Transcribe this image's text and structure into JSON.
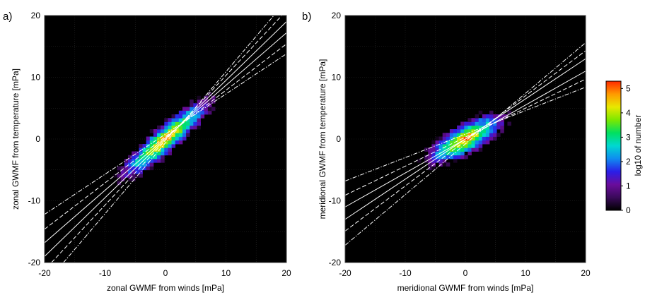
{
  "chart_data": [
    {
      "type": "heatmap",
      "panel_label": "a)",
      "xlabel": "zonal GWMF from winds [mPa]",
      "ylabel": "zonal GWMF from temperature [mPa]",
      "xlim": [
        -20,
        20
      ],
      "ylim": [
        -20,
        20
      ],
      "xticks": [
        "-20",
        "-10",
        "0",
        "10",
        "20"
      ],
      "yticks": [
        "-20",
        "-10",
        "0",
        "10",
        "20"
      ],
      "grid": true,
      "background": "#000000",
      "center": [
        0,
        0
      ],
      "spread_along": 3.2,
      "spread_across": 0.7,
      "fit_lines": [
        {
          "style": "solid",
          "slope": 0.85,
          "intercept": 0.2
        },
        {
          "style": "solid",
          "slope": 0.95,
          "intercept": 0.0
        },
        {
          "style": "dashed",
          "slope": 0.75,
          "intercept": 0.4
        },
        {
          "style": "dashed",
          "slope": 1.05,
          "intercept": -0.2
        },
        {
          "style": "dashdot",
          "slope": 0.65,
          "intercept": 0.8
        },
        {
          "style": "dashdot",
          "slope": 1.15,
          "intercept": -0.6
        }
      ]
    },
    {
      "type": "heatmap",
      "panel_label": "b)",
      "xlabel": "meridional GWMF from winds [mPa]",
      "ylabel": "meridional GWMF from temperature [mPa]",
      "xlim": [
        -20,
        20
      ],
      "ylim": [
        -20,
        20
      ],
      "xticks": [
        "-20",
        "-10",
        "0",
        "10",
        "20"
      ],
      "yticks": [
        "-20",
        "-10",
        "0",
        "10",
        "20"
      ],
      "grid": true,
      "background": "#000000",
      "center": [
        0,
        0
      ],
      "spread_along": 2.4,
      "spread_across": 0.8,
      "fit_lines": [
        {
          "style": "solid",
          "slope": 0.55,
          "intercept": 0.0
        },
        {
          "style": "solid",
          "slope": 0.65,
          "intercept": 0.0
        },
        {
          "style": "dashed",
          "slope": 0.47,
          "intercept": 0.3
        },
        {
          "style": "dashed",
          "slope": 0.73,
          "intercept": -0.3
        },
        {
          "style": "dashdot",
          "slope": 0.38,
          "intercept": 0.8
        },
        {
          "style": "dashdot",
          "slope": 0.82,
          "intercept": -0.8
        }
      ]
    }
  ],
  "colorbar": {
    "label": "log10 of number",
    "ticks": [
      "0",
      "1",
      "2",
      "3",
      "4",
      "5"
    ],
    "range": [
      0,
      5.3
    ],
    "colormap": [
      "#000000",
      "#3a0a5a",
      "#6a0c9c",
      "#2a1ee8",
      "#0f8cf0",
      "#00d8d0",
      "#00e060",
      "#7ce800",
      "#e8e800",
      "#ff9a00",
      "#ff2a00"
    ]
  }
}
